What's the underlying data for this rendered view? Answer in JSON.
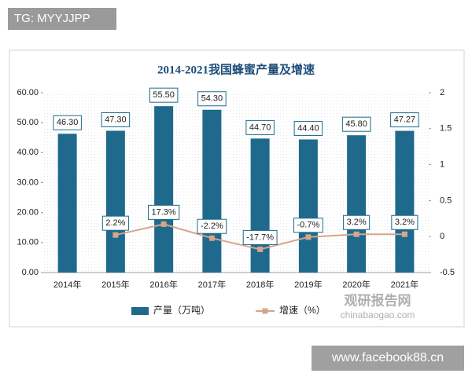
{
  "chart_data": {
    "type": "bar_line",
    "title": "2014-2021我国蜂蜜产量及增速",
    "categories": [
      "2014年",
      "2015年",
      "2016年",
      "2017年",
      "2018年",
      "2019年",
      "2020年",
      "2021年"
    ],
    "series": [
      {
        "name": "产量（万吨）",
        "type": "bar",
        "color": "#1f6a8c",
        "axis": "y",
        "values": [
          46.3,
          47.3,
          55.5,
          54.3,
          44.7,
          44.4,
          45.8,
          47.27
        ],
        "value_labels": [
          "46.30",
          "47.30",
          "55.50",
          "54.30",
          "44.70",
          "44.40",
          "45.80",
          "47.27"
        ]
      },
      {
        "name": "增速（%）",
        "type": "line",
        "color": "#d6a58c",
        "axis": "y2",
        "values": [
          null,
          0.022,
          0.173,
          -0.022,
          -0.177,
          -0.007,
          0.032,
          0.032
        ],
        "value_labels": [
          null,
          "2.2%",
          "17.3%",
          "-2.2%",
          "-17.7%",
          "-0.7%",
          "3.2%",
          "3.2%"
        ]
      }
    ],
    "ylim": [
      0,
      60
    ],
    "yticks": [
      {
        "value": 0,
        "label": "0.00"
      },
      {
        "value": 10,
        "label": "10.00"
      },
      {
        "value": 20,
        "label": "20.00"
      },
      {
        "value": 30,
        "label": "30.00"
      },
      {
        "value": 40,
        "label": "40.00"
      },
      {
        "value": 50,
        "label": "50.00"
      },
      {
        "value": 60,
        "label": "60.00"
      }
    ],
    "y2lim": [
      -0.5,
      2
    ],
    "y2ticks": [
      -0.5,
      0,
      0.5,
      1,
      1.5,
      2
    ],
    "legend": "bottom",
    "watermarks": [
      "TG: MYYJJPP",
      "观研报告网",
      "chinabaogao.com",
      "www.facebook88.cn"
    ]
  }
}
